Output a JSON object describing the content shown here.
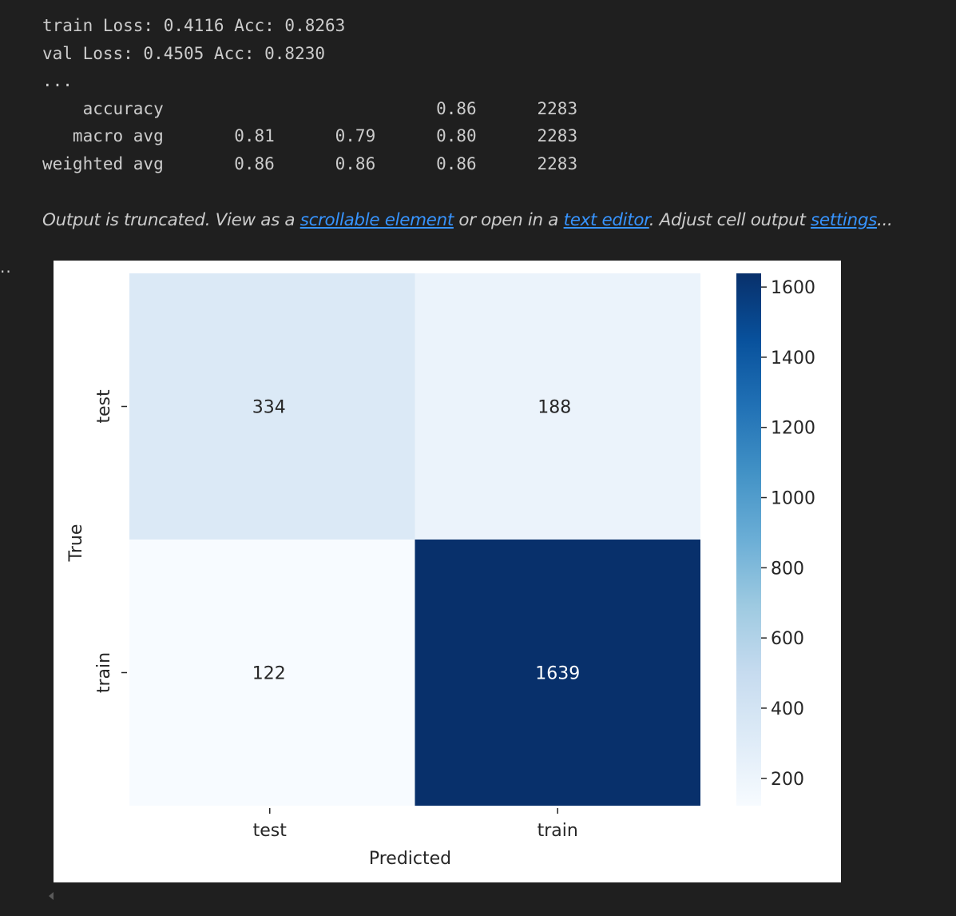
{
  "console": {
    "lines": [
      "train Loss: 0.4116 Acc: 0.8263",
      "val Loss: 0.4505 Acc: 0.8230",
      "...",
      "    accuracy                           0.86      2283",
      "   macro avg       0.81      0.79      0.80      2283",
      "weighted avg       0.86      0.86      0.86      2283"
    ]
  },
  "truncation": {
    "part1": "Output is truncated. View as a ",
    "link1": "scrollable element",
    "part2": " or open in a ",
    "link2": "text editor",
    "part3": ". Adjust cell output ",
    "link3": "settings",
    "part4": "..."
  },
  "cell_marker": "..",
  "chart_data": {
    "type": "heatmap",
    "xlabel": "Predicted",
    "ylabel": "True",
    "x_categories": [
      "test",
      "train"
    ],
    "y_categories": [
      "test",
      "train"
    ],
    "values": [
      [
        334,
        188
      ],
      [
        122,
        1639
      ]
    ],
    "colormap": "Blues",
    "colorbar": {
      "ticks": [
        200,
        400,
        600,
        800,
        1000,
        1200,
        1400,
        1600
      ],
      "range": [
        122,
        1639
      ]
    },
    "colors": {
      "334": "#dbe9f6",
      "188": "#ebf3fb",
      "122": "#f7fbff",
      "1639": "#08306b"
    }
  }
}
